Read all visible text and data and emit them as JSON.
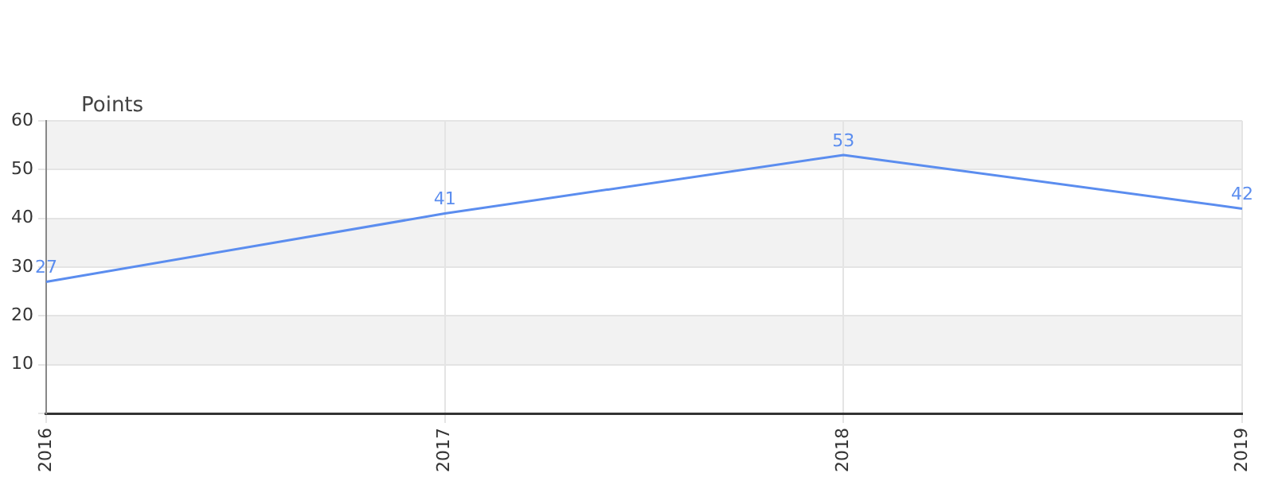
{
  "chart_data": {
    "type": "line",
    "ylabel": "Points",
    "categories": [
      "2016",
      "2017",
      "2018",
      "2019"
    ],
    "series": [
      {
        "color": "#5b8def",
        "values": [
          27,
          41,
          53,
          42
        ]
      }
    ],
    "ylim": [
      0,
      60
    ],
    "yticks": [
      {
        "value": 0,
        "label": null
      },
      10,
      20,
      30,
      40,
      50,
      60
    ],
    "grid": true,
    "data_labels": true,
    "legend": false,
    "marker": "none"
  }
}
